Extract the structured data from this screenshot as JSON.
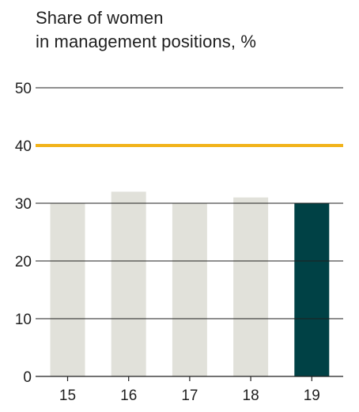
{
  "chart_data": {
    "type": "bar",
    "title_lines": [
      "Share of women",
      "in management positions, %"
    ],
    "categories": [
      "15",
      "16",
      "17",
      "18",
      "19"
    ],
    "values": [
      30,
      32,
      30,
      31,
      30
    ],
    "y_ticks": [
      "0",
      "10",
      "20",
      "30",
      "40",
      "50"
    ],
    "ylim": [
      0,
      50
    ],
    "reference_line": {
      "value": 40,
      "color": "#f2b31b"
    },
    "colors": {
      "bar_default": "#e1e1da",
      "bar_highlight": "#004145",
      "gridline": "#1f1f1f",
      "text": "#1f1f1f"
    },
    "highlight_category": "19",
    "grid": true,
    "legend": "none"
  }
}
